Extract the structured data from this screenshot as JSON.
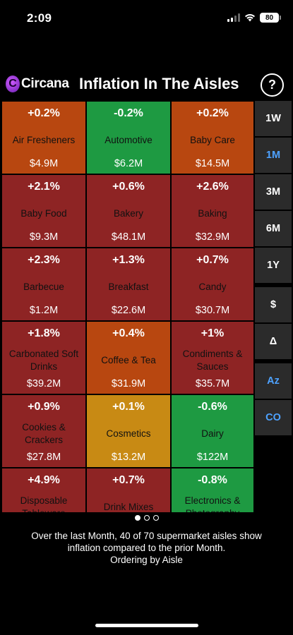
{
  "status": {
    "time": "2:09",
    "battery": "80"
  },
  "header": {
    "brand": "Circana",
    "brand_mark": "C",
    "title": "Inflation In The Aisles",
    "help_label": "?"
  },
  "tiles": [
    {
      "change": "+0.2%",
      "name": "Air Fresheners",
      "amount": "$4.9M",
      "color": "orange"
    },
    {
      "change": "-0.2%",
      "name": "Automotive",
      "amount": "$6.2M",
      "color": "green"
    },
    {
      "change": "+0.2%",
      "name": "Baby Care",
      "amount": "$14.5M",
      "color": "orange"
    },
    {
      "change": "+2.1%",
      "name": "Baby Food",
      "amount": "$9.3M",
      "color": "red"
    },
    {
      "change": "+0.6%",
      "name": "Bakery",
      "amount": "$48.1M",
      "color": "red"
    },
    {
      "change": "+2.6%",
      "name": "Baking",
      "amount": "$32.9M",
      "color": "red"
    },
    {
      "change": "+2.3%",
      "name": "Barbecue",
      "amount": "$1.2M",
      "color": "red"
    },
    {
      "change": "+1.3%",
      "name": "Breakfast",
      "amount": "$22.6M",
      "color": "red"
    },
    {
      "change": "+0.7%",
      "name": "Candy",
      "amount": "$30.7M",
      "color": "red"
    },
    {
      "change": "+1.8%",
      "name": "Carbonated Soft Drinks",
      "amount": "$39.2M",
      "color": "red"
    },
    {
      "change": "+0.4%",
      "name": "Coffee & Tea",
      "amount": "$31.9M",
      "color": "orange"
    },
    {
      "change": "+1%",
      "name": "Condiments & Sauces",
      "amount": "$35.7M",
      "color": "red"
    },
    {
      "change": "+0.9%",
      "name": "Cookies & Crackers",
      "amount": "$27.8M",
      "color": "red"
    },
    {
      "change": "+0.1%",
      "name": "Cosmetics",
      "amount": "$13.2M",
      "color": "gold"
    },
    {
      "change": "-0.6%",
      "name": "Dairy",
      "amount": "$122M",
      "color": "green"
    },
    {
      "change": "+4.9%",
      "name": "Disposable Tableware",
      "amount": "",
      "color": "red"
    },
    {
      "change": "+0.7%",
      "name": "Drink Mixes",
      "amount": "",
      "color": "red"
    },
    {
      "change": "-0.8%",
      "name": "Electronics & Photography",
      "amount": "",
      "color": "green"
    }
  ],
  "side_buttons": [
    {
      "label": "1W",
      "active": false
    },
    {
      "label": "1M",
      "active": true
    },
    {
      "label": "3M",
      "active": false
    },
    {
      "label": "6M",
      "active": false
    },
    {
      "label": "1Y",
      "active": false
    },
    {
      "label": "$",
      "active": false
    },
    {
      "label": "Δ",
      "active": false
    },
    {
      "label": "Az",
      "active": true
    },
    {
      "label": "CO",
      "active": true
    }
  ],
  "pager": {
    "pages": 3,
    "current": 0
  },
  "summary": {
    "line1": "Over the last Month, 40 of 70 supermarket aisles show",
    "line2": "inflation compared to the prior Month.",
    "line3": "Ordering by Aisle"
  }
}
